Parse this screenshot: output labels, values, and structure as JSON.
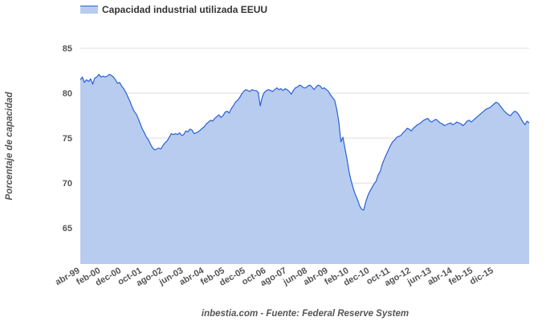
{
  "chart_data": {
    "type": "area",
    "legend": [
      "Capacidad industrial utilizada EEUU"
    ],
    "ylabel": "Porcentaje de capacidad",
    "source": "inbestia.com - Fuente: Federal Reserve System",
    "yticks": [
      65,
      70,
      75,
      80,
      85
    ],
    "ylim": [
      61,
      86.8
    ],
    "xticks": [
      "abr-99",
      "feb-00",
      "dec-00",
      "oct-01",
      "ago-02",
      "jun-03",
      "abr-04",
      "feb-05",
      "dec-05",
      "oct-06",
      "ago-07",
      "jun-08",
      "abr-09",
      "feb-10",
      "dec-10",
      "oct-11",
      "ago-12",
      "jun-13",
      "abr-14",
      "feb-15",
      "dic-15"
    ],
    "grid": "horizontal",
    "legend_position": "top-left",
    "colors": {
      "line": "#2a60d4",
      "fill": "#b8ccf0",
      "grid": "#dddddd"
    },
    "series": [
      {
        "name": "Capacidad industrial utilizada EEUU",
        "x_start": "abr-99",
        "frequency": "monthly",
        "values": [
          81.5,
          81.8,
          81.2,
          81.5,
          81.3,
          81.6,
          81.0,
          81.7,
          81.8,
          82.1,
          81.8,
          81.9,
          81.8,
          81.9,
          82.1,
          82.0,
          81.8,
          81.5,
          81.1,
          81.2,
          80.8,
          80.5,
          80.1,
          79.6,
          79.1,
          78.5,
          78.0,
          77.7,
          77.2,
          76.6,
          76.0,
          75.6,
          75.1,
          74.8,
          74.3,
          73.9,
          73.7,
          73.8,
          73.9,
          73.8,
          74.2,
          74.5,
          74.7,
          75.1,
          75.5,
          75.4,
          75.5,
          75.4,
          75.6,
          75.3,
          75.4,
          75.8,
          75.7,
          76.0,
          75.9,
          75.5,
          75.6,
          75.7,
          75.9,
          76.1,
          76.3,
          76.6,
          76.8,
          77.0,
          76.9,
          77.2,
          77.4,
          77.6,
          77.3,
          77.5,
          77.9,
          78.0,
          77.8,
          78.3,
          78.6,
          79.0,
          79.2,
          79.5,
          79.9,
          80.2,
          80.4,
          80.3,
          80.2,
          80.4,
          80.3,
          80.3,
          80.1,
          78.6,
          79.6,
          80.1,
          80.3,
          80.4,
          80.3,
          80.2,
          80.4,
          80.6,
          80.4,
          80.5,
          80.3,
          80.5,
          80.4,
          80.2,
          79.9,
          80.3,
          80.6,
          80.7,
          80.9,
          80.8,
          80.6,
          80.6,
          80.8,
          80.9,
          80.7,
          80.4,
          80.7,
          80.9,
          80.8,
          80.5,
          80.6,
          80.4,
          80.2,
          79.8,
          79.5,
          79.2,
          78.2,
          76.8,
          74.6,
          75.1,
          73.8,
          72.6,
          71.2,
          70.2,
          69.4,
          68.7,
          68.2,
          67.5,
          67.1,
          67.0,
          67.9,
          68.6,
          69.1,
          69.5,
          69.9,
          70.2,
          70.9,
          71.3,
          72.1,
          72.7,
          73.2,
          73.7,
          74.2,
          74.6,
          74.8,
          75.1,
          75.2,
          75.3,
          75.6,
          75.8,
          76.1,
          76.0,
          75.8,
          76.1,
          76.3,
          76.5,
          76.6,
          76.8,
          77.0,
          77.1,
          77.2,
          76.9,
          76.8,
          77.0,
          77.1,
          76.9,
          76.7,
          76.6,
          76.4,
          76.5,
          76.6,
          76.7,
          76.5,
          76.6,
          76.8,
          76.7,
          76.6,
          76.4,
          76.6,
          76.9,
          77.0,
          76.8,
          77.0,
          77.2,
          77.4,
          77.6,
          77.8,
          78.0,
          78.2,
          78.3,
          78.4,
          78.6,
          78.8,
          79.0,
          78.9,
          78.6,
          78.3,
          78.0,
          77.8,
          77.6,
          77.5,
          77.8,
          78.0,
          77.9,
          77.6,
          77.2,
          76.8,
          76.5,
          76.9,
          76.7
        ]
      }
    ]
  }
}
